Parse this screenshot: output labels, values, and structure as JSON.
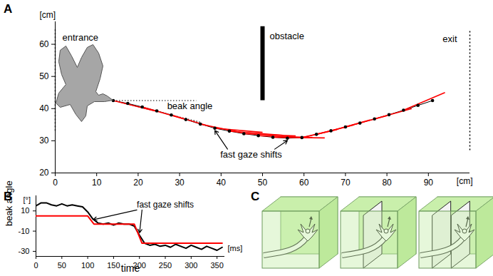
{
  "chart_data": [
    {
      "panel_label": "A",
      "type": "line",
      "x_unit": "[cm]",
      "y_unit": "[cm]",
      "xlim": [
        0,
        100
      ],
      "xticks": [
        0,
        10,
        20,
        30,
        40,
        50,
        60,
        70,
        80,
        90
      ],
      "ylim": [
        20,
        67
      ],
      "yticks": [
        20,
        30,
        40,
        50,
        60
      ],
      "x": [
        14,
        17.5,
        21,
        24.5,
        28,
        31.5,
        35,
        38.5,
        42,
        45.5,
        49,
        52.5,
        56,
        59.5,
        63,
        66.5,
        70,
        73.5,
        77,
        80.5,
        84,
        87.5,
        91
      ],
      "values": [
        42.5,
        41.6,
        40.5,
        39.3,
        38.0,
        36.6,
        35.2,
        33.9,
        33.0,
        32.2,
        31.6,
        31.1,
        30.8,
        31.0,
        32.0,
        33.1,
        34.3,
        35.5,
        36.8,
        38.1,
        39.5,
        41.0,
        42.5
      ],
      "color": "#000000",
      "marker": "circle",
      "gaze_lines": {
        "color": "#ff0000",
        "segments": [
          [
            14,
            42.5,
            24,
            39.3
          ],
          [
            21,
            40.5,
            31,
            36.8
          ],
          [
            28,
            38.0,
            37,
            34.6
          ],
          [
            35,
            35.2,
            45,
            32.5
          ],
          [
            38.5,
            33.9,
            50,
            32.6
          ],
          [
            42,
            33.0,
            55,
            31.7
          ],
          [
            45.5,
            32.2,
            58,
            31.5
          ],
          [
            49,
            31.6,
            62,
            31.0
          ],
          [
            52.5,
            31.1,
            65,
            30.9
          ],
          [
            59.5,
            31.0,
            68,
            33.5
          ],
          [
            63,
            32.0,
            72,
            34.9
          ],
          [
            66.5,
            33.1,
            76,
            36.5
          ],
          [
            70,
            34.3,
            80,
            37.8
          ],
          [
            77,
            36.8,
            86,
            40.0
          ],
          [
            84,
            39.5,
            94,
            45.0
          ]
        ]
      },
      "walls": [
        {
          "label": "entrance",
          "x": 0,
          "y1": 33,
          "y2": 65,
          "line_style": "dotted"
        },
        {
          "label": "obstacle",
          "x": 50,
          "y1": 42.5,
          "y2": 65.5,
          "line_style": "solid"
        },
        {
          "label": "exit",
          "x": 100,
          "y1": 27,
          "y2": 64.5,
          "line_style": "dotted"
        }
      ],
      "annotations": [
        {
          "text": "beak angle"
        },
        {
          "text": "fast gaze shifts",
          "targets": [
            [
              38.5,
              33.9
            ],
            [
              56,
              30.8
            ]
          ]
        }
      ]
    },
    {
      "panel_label": "B",
      "type": "line",
      "x_label": "time",
      "x_unit": "[ms]",
      "y_label": "beak angle",
      "y_unit": "[°]",
      "xlim": [
        0,
        365
      ],
      "xticks": [
        0,
        50,
        100,
        150,
        200,
        250,
        300,
        350
      ],
      "ylim": [
        -35,
        25
      ],
      "yticks": [
        10,
        -10,
        -30
      ],
      "series": [
        {
          "color": "#000000",
          "x": [
            0,
            10,
            20,
            30,
            40,
            50,
            60,
            70,
            80,
            90,
            100,
            110,
            120,
            130,
            140,
            150,
            160,
            170,
            180,
            190,
            200,
            210,
            220,
            230,
            240,
            250,
            260,
            270,
            280,
            290,
            300,
            310,
            320,
            330,
            340,
            350,
            360
          ],
          "values": [
            15,
            18,
            18,
            16,
            15,
            17,
            15,
            16,
            15,
            14,
            9,
            2,
            -2,
            -3,
            -2,
            -4,
            -2,
            -3,
            -3,
            -5,
            -14,
            -22,
            -24,
            -23,
            -25,
            -24,
            -26,
            -23,
            -25,
            -27,
            -24,
            -26,
            -28,
            -25,
            -27,
            -29,
            -26
          ]
        },
        {
          "color": "#ff0000",
          "x": [
            0,
            100,
            112,
            190,
            205,
            360
          ],
          "values": [
            5,
            5,
            -3,
            -3,
            -22,
            -22
          ]
        }
      ],
      "annotations": [
        {
          "text": "fast gaze shifts",
          "targets": [
            [
              108,
              1
            ],
            [
              200,
              -13
            ]
          ]
        }
      ]
    }
  ],
  "diagram": {
    "panel_label": "C",
    "scenes": [
      {
        "walls": 0
      },
      {
        "walls": 1
      },
      {
        "walls": 2
      }
    ]
  }
}
